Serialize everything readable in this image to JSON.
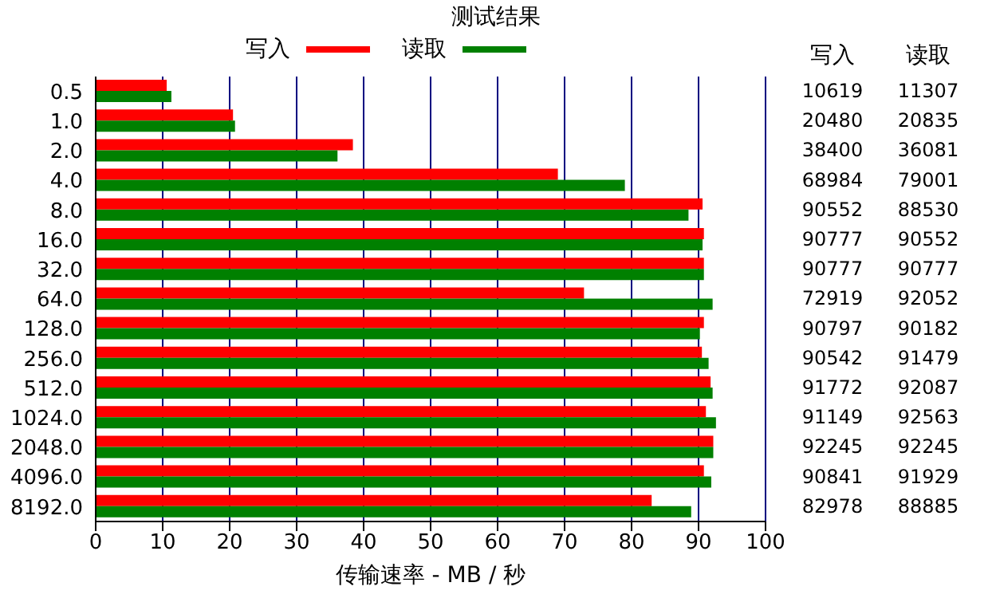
{
  "chart_data": {
    "type": "bar",
    "orientation": "horizontal",
    "title": "测试结果",
    "xlabel": "传输速率 - MB / 秒",
    "categories": [
      "0.5",
      "1.0",
      "2.0",
      "4.0",
      "8.0",
      "16.0",
      "32.0",
      "64.0",
      "128.0",
      "256.0",
      "512.0",
      "1024.0",
      "2048.0",
      "4096.0",
      "8192.0"
    ],
    "series": [
      {
        "name": "写入",
        "color": "#ff0000",
        "values": [
          10.6,
          20.5,
          38.4,
          69.0,
          90.6,
          90.8,
          90.8,
          72.9,
          90.8,
          90.5,
          91.8,
          91.1,
          92.2,
          90.8,
          83.0
        ]
      },
      {
        "name": "读取",
        "color": "#008000",
        "values": [
          11.3,
          20.8,
          36.1,
          79.0,
          88.5,
          90.6,
          90.8,
          92.1,
          90.2,
          91.5,
          92.1,
          92.6,
          92.2,
          91.9,
          88.9
        ]
      }
    ],
    "annotations": [
      "10619",
      "11307",
      "20480",
      "20835",
      "38400",
      "36081",
      "68984",
      "79001",
      "90552",
      "88530",
      "90777",
      "90552",
      "90777",
      "90777",
      "72919",
      "92052",
      "90797",
      "90182",
      "90542",
      "91479",
      "91772",
      "92087",
      "91149",
      "92563",
      "92245",
      "92245",
      "90841",
      "91929",
      "82978",
      "88885"
    ],
    "xlim": [
      0,
      100
    ],
    "xticks": [
      0,
      10,
      20,
      30,
      40,
      50,
      60,
      70,
      80,
      90,
      100
    ],
    "grid": "x",
    "legend": "top"
  }
}
